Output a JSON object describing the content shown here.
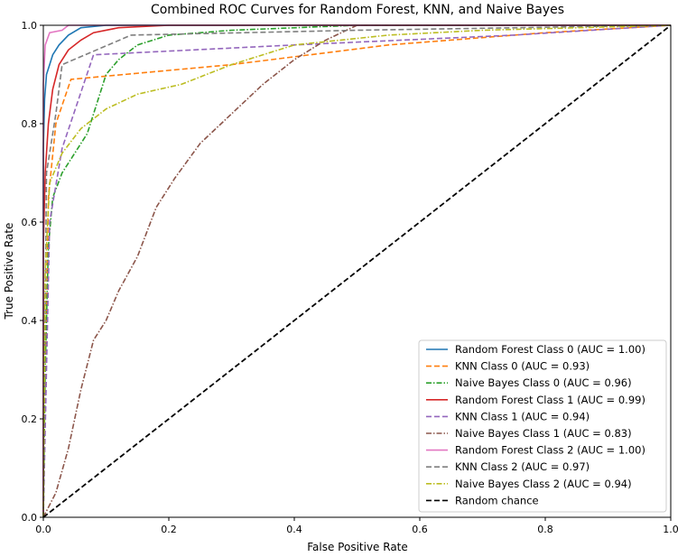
{
  "chart_data": {
    "type": "line",
    "title": "Combined ROC Curves for Random Forest, KNN, and Naive Bayes",
    "xlabel": "False Positive Rate",
    "ylabel": "True Positive Rate",
    "xlim": [
      0,
      1
    ],
    "ylim": [
      0,
      1
    ],
    "x_ticks": [
      "0.0",
      "0.2",
      "0.4",
      "0.6",
      "0.8",
      "1.0"
    ],
    "y_ticks": [
      "0.0",
      "0.2",
      "0.4",
      "0.6",
      "0.8",
      "1.0"
    ],
    "grid": false,
    "legend_position": "lower-right",
    "series": [
      {
        "name": "Random Forest Class 0 (AUC = 1.00)",
        "color": "#1f77b4",
        "dash": "solid",
        "points": [
          [
            0,
            0
          ],
          [
            0,
            0.75
          ],
          [
            0.002,
            0.85
          ],
          [
            0.005,
            0.9
          ],
          [
            0.01,
            0.92
          ],
          [
            0.015,
            0.94
          ],
          [
            0.025,
            0.96
          ],
          [
            0.04,
            0.98
          ],
          [
            0.06,
            0.995
          ],
          [
            0.1,
            1.0
          ],
          [
            1,
            1
          ]
        ]
      },
      {
        "name": "KNN Class 0 (AUC = 0.93)",
        "color": "#ff7f0e",
        "dash": "dashed",
        "points": [
          [
            0,
            0
          ],
          [
            0.008,
            0.65
          ],
          [
            0.02,
            0.8
          ],
          [
            0.044,
            0.89
          ],
          [
            0.3,
            0.92
          ],
          [
            0.55,
            0.96
          ],
          [
            0.8,
            0.985
          ],
          [
            1,
            1
          ]
        ]
      },
      {
        "name": "Naive Bayes Class 0 (AUC = 0.96)",
        "color": "#2ca02c",
        "dash": "dashdot",
        "points": [
          [
            0,
            0
          ],
          [
            0.003,
            0.3
          ],
          [
            0.008,
            0.55
          ],
          [
            0.015,
            0.65
          ],
          [
            0.03,
            0.7
          ],
          [
            0.05,
            0.74
          ],
          [
            0.07,
            0.78
          ],
          [
            0.085,
            0.84
          ],
          [
            0.1,
            0.9
          ],
          [
            0.12,
            0.93
          ],
          [
            0.15,
            0.96
          ],
          [
            0.2,
            0.98
          ],
          [
            0.3,
            0.99
          ],
          [
            0.5,
            1.0
          ],
          [
            1,
            1
          ]
        ]
      },
      {
        "name": "Random Forest Class 1 (AUC = 0.99)",
        "color": "#d62728",
        "dash": "solid",
        "points": [
          [
            0,
            0
          ],
          [
            0,
            0.55
          ],
          [
            0.003,
            0.7
          ],
          [
            0.008,
            0.8
          ],
          [
            0.015,
            0.87
          ],
          [
            0.025,
            0.92
          ],
          [
            0.04,
            0.95
          ],
          [
            0.06,
            0.97
          ],
          [
            0.08,
            0.985
          ],
          [
            0.12,
            0.995
          ],
          [
            0.2,
            1.0
          ],
          [
            1,
            1
          ]
        ]
      },
      {
        "name": "KNN Class 1 (AUC = 0.94)",
        "color": "#9467bd",
        "dash": "dashed",
        "points": [
          [
            0,
            0
          ],
          [
            0.01,
            0.6
          ],
          [
            0.03,
            0.75
          ],
          [
            0.08,
            0.94
          ],
          [
            0.4,
            0.96
          ],
          [
            0.75,
            0.98
          ],
          [
            1,
            1
          ]
        ]
      },
      {
        "name": "Naive Bayes Class 1 (AUC = 0.83)",
        "color": "#8c564b",
        "dash": "dashdot",
        "points": [
          [
            0,
            0
          ],
          [
            0.02,
            0.05
          ],
          [
            0.04,
            0.14
          ],
          [
            0.06,
            0.26
          ],
          [
            0.08,
            0.36
          ],
          [
            0.1,
            0.4
          ],
          [
            0.12,
            0.46
          ],
          [
            0.15,
            0.53
          ],
          [
            0.18,
            0.63
          ],
          [
            0.21,
            0.69
          ],
          [
            0.25,
            0.76
          ],
          [
            0.3,
            0.82
          ],
          [
            0.35,
            0.88
          ],
          [
            0.4,
            0.93
          ],
          [
            0.45,
            0.97
          ],
          [
            0.5,
            1.0
          ],
          [
            1,
            1
          ]
        ]
      },
      {
        "name": "Random Forest Class 2 (AUC = 1.00)",
        "color": "#e377c2",
        "dash": "solid",
        "points": [
          [
            0,
            0
          ],
          [
            0,
            0.88
          ],
          [
            0.003,
            0.96
          ],
          [
            0.01,
            0.985
          ],
          [
            0.03,
            0.99
          ],
          [
            0.04,
            1.0
          ],
          [
            1,
            1
          ]
        ]
      },
      {
        "name": "KNN Class 2 (AUC = 0.97)",
        "color": "#7f7f7f",
        "dash": "dashed",
        "points": [
          [
            0,
            0
          ],
          [
            0.005,
            0.7
          ],
          [
            0.02,
            0.82
          ],
          [
            0.03,
            0.92
          ],
          [
            0.14,
            0.98
          ],
          [
            0.5,
            0.99
          ],
          [
            1,
            1
          ]
        ]
      },
      {
        "name": "Naive Bayes Class 2 (AUC = 0.94)",
        "color": "#bcbd22",
        "dash": "dashdot",
        "points": [
          [
            0,
            0
          ],
          [
            0.003,
            0.5
          ],
          [
            0.01,
            0.68
          ],
          [
            0.03,
            0.74
          ],
          [
            0.06,
            0.79
          ],
          [
            0.1,
            0.83
          ],
          [
            0.15,
            0.86
          ],
          [
            0.22,
            0.88
          ],
          [
            0.3,
            0.92
          ],
          [
            0.4,
            0.96
          ],
          [
            0.55,
            0.98
          ],
          [
            0.7,
            0.99
          ],
          [
            1,
            1
          ]
        ]
      },
      {
        "name": "Random chance",
        "color": "#000000",
        "dash": "dashed",
        "points": [
          [
            0,
            0
          ],
          [
            1,
            1
          ]
        ]
      }
    ]
  }
}
